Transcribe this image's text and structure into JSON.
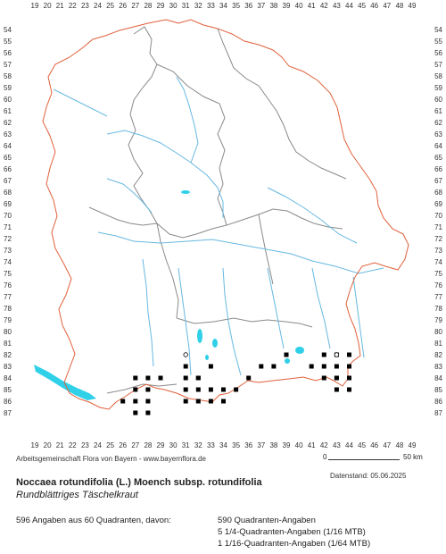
{
  "grid": {
    "x_labels": [
      "19",
      "20",
      "21",
      "22",
      "23",
      "24",
      "25",
      "26",
      "27",
      "28",
      "29",
      "30",
      "31",
      "32",
      "33",
      "34",
      "35",
      "36",
      "37",
      "38",
      "39",
      "40",
      "41",
      "42",
      "43",
      "44",
      "45",
      "46",
      "47",
      "48",
      "49"
    ],
    "y_labels": [
      "54",
      "55",
      "56",
      "57",
      "58",
      "59",
      "60",
      "61",
      "62",
      "63",
      "64",
      "65",
      "66",
      "67",
      "68",
      "69",
      "70",
      "71",
      "72",
      "73",
      "74",
      "75",
      "76",
      "77",
      "78",
      "79",
      "80",
      "81",
      "82",
      "83",
      "84",
      "85",
      "86",
      "87"
    ]
  },
  "colors": {
    "state_border": "#e0603a",
    "region_border": "#888888",
    "rivers": "#67b8e0",
    "lakes": "#2fd0e8",
    "records": "#000000"
  },
  "records": {
    "filled": [
      [
        39,
        82
      ],
      [
        43,
        82
      ],
      [
        44,
        82
      ],
      [
        42,
        82
      ],
      [
        37,
        83
      ],
      [
        38,
        83
      ],
      [
        41,
        83
      ],
      [
        42,
        83
      ],
      [
        43,
        83
      ],
      [
        44,
        83
      ],
      [
        31,
        84
      ],
      [
        32,
        84
      ],
      [
        36,
        84
      ],
      [
        42,
        84
      ],
      [
        43,
        84
      ],
      [
        44,
        84
      ],
      [
        43,
        85
      ],
      [
        44,
        85
      ],
      [
        43,
        84
      ],
      [
        27,
        85
      ],
      [
        28,
        85
      ],
      [
        31,
        85
      ],
      [
        32,
        85
      ],
      [
        33,
        85
      ],
      [
        34,
        85
      ],
      [
        35,
        85
      ],
      [
        27,
        86
      ],
      [
        28,
        86
      ],
      [
        31,
        86
      ],
      [
        32,
        86
      ],
      [
        33,
        86
      ],
      [
        34,
        86
      ],
      [
        26,
        86
      ],
      [
        27,
        87
      ],
      [
        28,
        87
      ],
      [
        29,
        84
      ],
      [
        27,
        84
      ],
      [
        28,
        84
      ],
      [
        31,
        83
      ],
      [
        33,
        83
      ],
      [
        32,
        84
      ]
    ],
    "open": [
      [
        31,
        82
      ],
      [
        43,
        82
      ]
    ]
  },
  "credit": "Arbeitsgemeinschaft Flora von Bayern - www.bayernflora.de",
  "scale": {
    "start": "0",
    "end": "50 km"
  },
  "date": "Datenstand: 05.06.2025",
  "title": "Noccaea rotundifolia (L.) Moench subsp. rotundifolia",
  "subtitle": "Rundblättriges Täschelkraut",
  "summary": "596 Angaben aus 60 Quadranten, davon:",
  "stats": [
    "590 Quadranten-Angaben",
    "5 1/4-Quadranten-Angaben (1/16 MTB)",
    "1 1/16-Quadranten-Angaben (1/64 MTB)"
  ]
}
